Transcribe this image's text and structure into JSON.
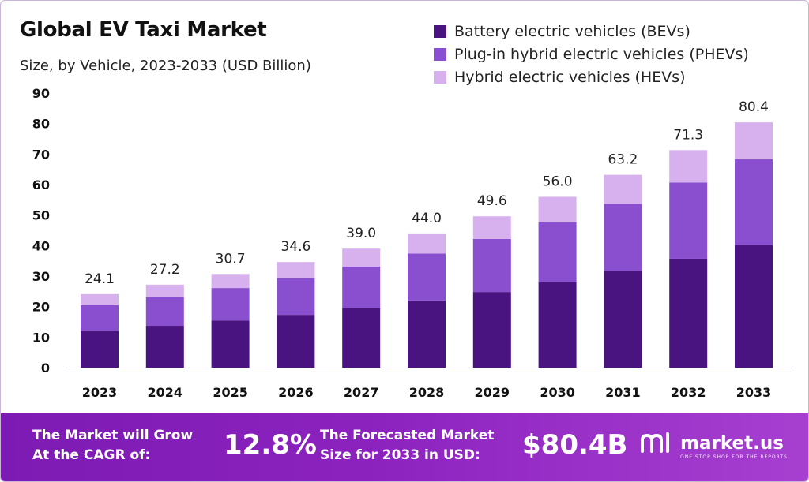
{
  "header": {
    "title": "Global EV Taxi Market",
    "subtitle": "Size, by Vehicle, 2023-2033 (USD Billion)"
  },
  "chart_data": {
    "type": "bar",
    "stacked": true,
    "categories": [
      "2023",
      "2024",
      "2025",
      "2026",
      "2027",
      "2028",
      "2029",
      "2030",
      "2031",
      "2032",
      "2033"
    ],
    "series": [
      {
        "name": "Battery electric vehicles (BEVs)",
        "color": "#4a1480",
        "values": [
          12.1,
          13.7,
          15.4,
          17.3,
          19.5,
          22.0,
          24.8,
          28.0,
          31.6,
          35.7,
          40.2
        ]
      },
      {
        "name": "Plug-in hybrid electric vehicles (PHEVs)",
        "color": "#8a4fcf",
        "values": [
          8.4,
          9.5,
          10.7,
          12.1,
          13.6,
          15.4,
          17.4,
          19.6,
          22.1,
          25.0,
          28.1
        ]
      },
      {
        "name": "Hybrid electric vehicles (HEVs)",
        "color": "#d7b0ee",
        "values": [
          3.6,
          4.0,
          4.6,
          5.2,
          5.9,
          6.6,
          7.4,
          8.4,
          9.5,
          10.6,
          12.1
        ]
      }
    ],
    "totals": [
      "24.1",
      "27.2",
      "30.7",
      "34.6",
      "39.0",
      "44.0",
      "49.6",
      "56.0",
      "63.2",
      "71.3",
      "80.4"
    ],
    "yticks": [
      "0",
      "10",
      "20",
      "30",
      "40",
      "50",
      "60",
      "70",
      "80",
      "90"
    ],
    "ylim": [
      0,
      90
    ],
    "grid": false,
    "legend_position": "top-right"
  },
  "footer": {
    "cagr_label_line1": "The Market will Grow",
    "cagr_label_line2": "At the CAGR of:",
    "cagr_value": "12.8%",
    "forecast_label_line1": "The Forecasted Market",
    "forecast_label_line2": "Size for 2033 in USD:",
    "forecast_value": "$80.4B",
    "brand_name": "market.us",
    "brand_tagline": "ONE STOP SHOP FOR THE REPORTS",
    "brand_logo_icon": "market-us-logo-icon"
  }
}
